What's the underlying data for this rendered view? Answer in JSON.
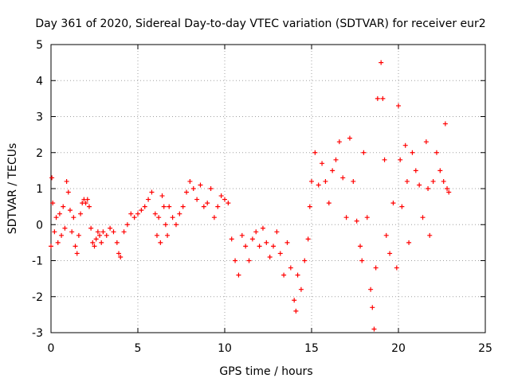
{
  "chart_data": {
    "type": "scatter",
    "title": "Day 361 of 2020, Sidereal Day-to-day VTEC variation (SDTVAR) for receiver eur2",
    "xlabel": "GPS time / hours",
    "ylabel": "SDTVAR / TECUs",
    "xlim": [
      0,
      25
    ],
    "ylim": [
      -3,
      5
    ],
    "xticks": [
      0,
      5,
      10,
      15,
      20,
      25
    ],
    "yticks": [
      -3,
      -2,
      -1,
      0,
      1,
      2,
      3,
      4,
      5
    ],
    "grid": true,
    "marker": "+",
    "color": "#ff0000",
    "series": [
      {
        "name": "main",
        "points": [
          [
            0.0,
            -0.6
          ],
          [
            0.05,
            1.3
          ],
          [
            0.1,
            0.6
          ],
          [
            0.2,
            -0.2
          ],
          [
            0.3,
            0.2
          ],
          [
            0.4,
            -0.5
          ],
          [
            0.5,
            0.3
          ],
          [
            0.6,
            -0.3
          ],
          [
            0.7,
            0.5
          ],
          [
            0.8,
            -0.1
          ],
          [
            0.9,
            1.2
          ],
          [
            1.0,
            0.9
          ],
          [
            1.1,
            0.4
          ],
          [
            1.2,
            -0.2
          ],
          [
            1.3,
            0.2
          ],
          [
            1.4,
            -0.6
          ],
          [
            1.5,
            -0.8
          ],
          [
            1.6,
            -0.3
          ],
          [
            1.7,
            0.3
          ],
          [
            1.8,
            0.6
          ],
          [
            1.9,
            0.7
          ],
          [
            2.0,
            0.6
          ],
          [
            2.1,
            0.7
          ],
          [
            2.2,
            0.5
          ],
          [
            2.3,
            -0.1
          ],
          [
            2.4,
            -0.5
          ],
          [
            2.5,
            -0.6
          ],
          [
            2.6,
            -0.4
          ],
          [
            2.7,
            -0.2
          ],
          [
            2.8,
            -0.3
          ],
          [
            2.9,
            -0.5
          ],
          [
            3.0,
            -0.2
          ],
          [
            3.2,
            -0.3
          ],
          [
            3.4,
            -0.1
          ],
          [
            3.6,
            -0.2
          ],
          [
            3.8,
            -0.5
          ],
          [
            3.9,
            -0.8
          ],
          [
            4.0,
            -0.9
          ],
          [
            4.2,
            -0.2
          ],
          [
            4.4,
            0.0
          ],
          [
            4.6,
            0.3
          ],
          [
            4.8,
            0.2
          ],
          [
            5.0,
            0.3
          ],
          [
            5.2,
            0.4
          ],
          [
            5.4,
            0.5
          ],
          [
            5.6,
            0.7
          ],
          [
            5.8,
            0.9
          ],
          [
            6.0,
            0.3
          ],
          [
            6.1,
            -0.3
          ],
          [
            6.2,
            0.2
          ],
          [
            6.3,
            -0.5
          ],
          [
            6.4,
            0.8
          ],
          [
            6.5,
            0.5
          ],
          [
            6.6,
            0.0
          ],
          [
            6.7,
            -0.3
          ],
          [
            6.8,
            0.5
          ],
          [
            7.0,
            0.2
          ],
          [
            7.2,
            0.0
          ],
          [
            7.4,
            0.3
          ],
          [
            7.6,
            0.5
          ],
          [
            7.8,
            0.9
          ],
          [
            8.0,
            1.2
          ],
          [
            8.2,
            1.0
          ],
          [
            8.4,
            0.7
          ],
          [
            8.6,
            1.1
          ],
          [
            8.8,
            0.5
          ],
          [
            9.0,
            0.6
          ],
          [
            9.2,
            1.0
          ],
          [
            9.4,
            0.2
          ],
          [
            9.6,
            0.5
          ],
          [
            9.8,
            0.8
          ],
          [
            10.0,
            0.7
          ],
          [
            10.2,
            0.6
          ],
          [
            10.4,
            -0.4
          ],
          [
            10.6,
            -1.0
          ],
          [
            10.8,
            -1.4
          ],
          [
            11.0,
            -0.3
          ],
          [
            11.2,
            -0.6
          ],
          [
            11.4,
            -1.0
          ],
          [
            11.6,
            -0.4
          ],
          [
            11.8,
            -0.2
          ],
          [
            12.0,
            -0.6
          ],
          [
            12.2,
            -0.1
          ],
          [
            12.4,
            -0.5
          ],
          [
            12.6,
            -0.9
          ],
          [
            12.8,
            -0.6
          ],
          [
            13.0,
            -0.2
          ],
          [
            13.2,
            -0.8
          ],
          [
            13.4,
            -1.4
          ],
          [
            13.6,
            -0.5
          ],
          [
            13.8,
            -1.2
          ],
          [
            14.0,
            -2.1
          ],
          [
            14.1,
            -2.4
          ],
          [
            14.2,
            -1.4
          ],
          [
            14.4,
            -1.8
          ],
          [
            14.6,
            -1.0
          ],
          [
            14.8,
            -0.4
          ],
          [
            14.9,
            0.5
          ],
          [
            15.0,
            1.2
          ],
          [
            15.2,
            2.0
          ],
          [
            15.4,
            1.1
          ],
          [
            15.6,
            1.7
          ],
          [
            15.8,
            1.2
          ],
          [
            16.0,
            0.6
          ],
          [
            16.2,
            1.5
          ],
          [
            16.4,
            1.8
          ],
          [
            16.6,
            2.3
          ],
          [
            16.8,
            1.3
          ],
          [
            17.0,
            0.2
          ],
          [
            17.2,
            2.4
          ],
          [
            17.4,
            1.2
          ],
          [
            17.6,
            0.1
          ],
          [
            17.8,
            -0.6
          ],
          [
            17.9,
            -1.0
          ],
          [
            18.0,
            2.0
          ],
          [
            18.2,
            0.2
          ],
          [
            18.4,
            -1.8
          ],
          [
            18.5,
            -2.3
          ],
          [
            18.6,
            -2.9
          ],
          [
            18.7,
            -1.2
          ],
          [
            18.8,
            3.5
          ],
          [
            19.0,
            4.5
          ],
          [
            19.1,
            3.5
          ],
          [
            19.2,
            1.8
          ],
          [
            19.3,
            -0.3
          ],
          [
            19.5,
            -0.8
          ],
          [
            19.7,
            0.6
          ],
          [
            19.9,
            -1.2
          ],
          [
            20.0,
            3.3
          ],
          [
            20.1,
            1.8
          ],
          [
            20.2,
            0.5
          ],
          [
            20.4,
            2.2
          ],
          [
            20.5,
            1.2
          ],
          [
            20.6,
            -0.5
          ],
          [
            20.8,
            2.0
          ],
          [
            21.0,
            1.5
          ],
          [
            21.2,
            1.1
          ],
          [
            21.4,
            0.2
          ],
          [
            21.6,
            2.3
          ],
          [
            21.7,
            1.0
          ],
          [
            21.8,
            -0.3
          ],
          [
            22.0,
            1.2
          ],
          [
            22.2,
            2.0
          ],
          [
            22.4,
            1.5
          ],
          [
            22.6,
            1.2
          ],
          [
            22.7,
            2.8
          ],
          [
            22.8,
            1.0
          ],
          [
            22.9,
            0.9
          ]
        ]
      }
    ]
  }
}
